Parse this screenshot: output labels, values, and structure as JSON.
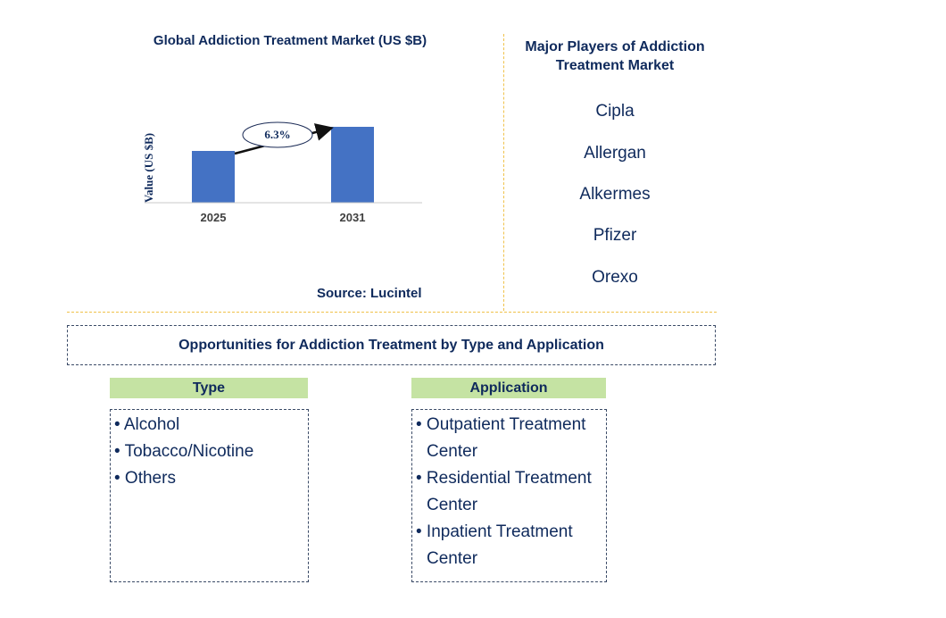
{
  "chart_data": {
    "type": "bar",
    "title": "Global Addiction Treatment Market (US $B)",
    "ylabel": "Value (US $B)",
    "categories": [
      "2025",
      "2031"
    ],
    "values": [
      5.8,
      8.5
    ],
    "ylim": [
      0,
      10
    ],
    "annotation": "6.3%",
    "grid": false,
    "bar_color": "#4472c4",
    "source": "Source: Lucintel"
  },
  "players": {
    "title": "Major Players of Addiction Treatment Market",
    "items": [
      "Cipla",
      "Allergan",
      "Alkermes",
      "Pfizer",
      "Orexo"
    ]
  },
  "opportunities": {
    "title": "Opportunities for Addiction Treatment by Type and Application",
    "type": {
      "header": "Type",
      "items": [
        "• Alcohol",
        "• Tobacco/Nicotine",
        "• Others"
      ]
    },
    "application": {
      "header": "Application",
      "items": [
        "• Outpatient Treatment Center",
        "• Residential Treatment Center",
        "• Inpatient Treatment Center"
      ]
    }
  },
  "colors": {
    "text": "#0f2a5c",
    "divider": "#f0c24a",
    "header_fill": "#c5e3a3"
  }
}
